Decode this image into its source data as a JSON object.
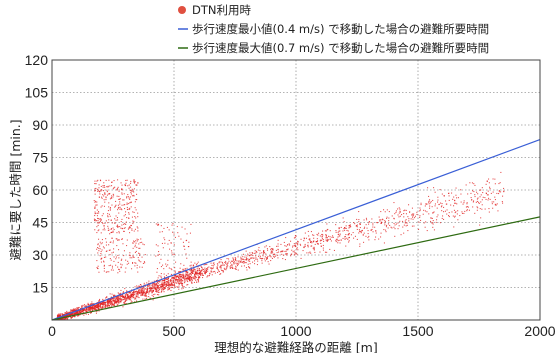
{
  "chart_data": {
    "type": "scatter",
    "xlabel": "理想的な避難経路の距離 [m]",
    "ylabel": "避難に要した時間 [min.]",
    "xlim": [
      0,
      2000
    ],
    "ylim": [
      0,
      120
    ],
    "xticks": [
      0,
      500,
      1000,
      1500,
      2000
    ],
    "yticks": [
      15,
      30,
      45,
      60,
      75,
      90,
      105,
      120
    ],
    "grid": true,
    "legend_position": "top",
    "series": [
      {
        "name": "DTN利用時",
        "kind": "scatter",
        "color": "#e02020",
        "clusters": [
          {
            "x_range": [
              20,
              600
            ],
            "y_trend": [
              0.9,
              22
            ],
            "spread": 3,
            "count": 1700
          },
          {
            "x_range": [
              600,
              1850
            ],
            "y_trend": [
              22,
              60
            ],
            "spread": 6,
            "count": 950
          },
          {
            "x_range": [
              170,
              350
            ],
            "y_range": [
              40,
              65
            ],
            "count": 320
          },
          {
            "x_range": [
              180,
              380
            ],
            "y_range": [
              22,
              38
            ],
            "count": 160
          },
          {
            "x_range": [
              420,
              570
            ],
            "y_range": [
              20,
              45
            ],
            "count": 90
          }
        ]
      },
      {
        "name": "歩行速度最小値(0.4 m/s) で移動した場合の避難所要時間",
        "kind": "line",
        "color": "#3a5fd6",
        "x": [
          0,
          2000
        ],
        "y": [
          0,
          83.3
        ]
      },
      {
        "name": "歩行速度最大値(0.7 m/s) で移動した場合の避難所要時間",
        "kind": "line",
        "color": "#2e6b12",
        "x": [
          0,
          2000
        ],
        "y": [
          0,
          47.6
        ]
      }
    ]
  }
}
